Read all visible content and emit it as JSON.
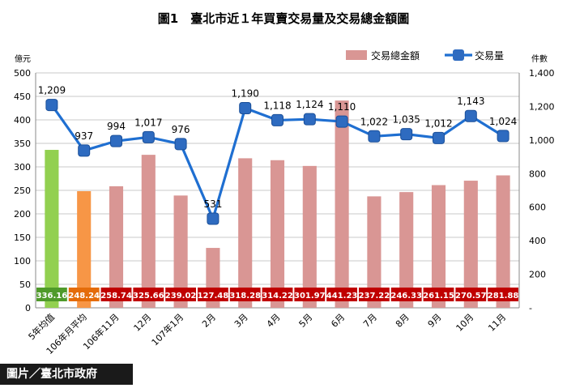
{
  "chart_data": {
    "type": "bar",
    "title": "圖1　臺北市近１年買賣交易量及交易總金額圖",
    "categories": [
      "5年均值",
      "106年月平均",
      "106年11月",
      "12月",
      "107年1月",
      "2月",
      "3月",
      "4月",
      "5月",
      "6月",
      "7月",
      "8月",
      "9月",
      "10月",
      "11月"
    ],
    "y_left_unit": "億元",
    "y_right_unit": "件數",
    "ylim_left": [
      0,
      500
    ],
    "ylim_right": [
      0,
      1400
    ],
    "y_left_ticks": [
      "0",
      "50",
      "100",
      "150",
      "200",
      "250",
      "300",
      "350",
      "400",
      "450",
      "500"
    ],
    "y_right_ticks": [
      "-",
      "200",
      "400",
      "600",
      "800",
      "1,000",
      "1,200",
      "1,400"
    ],
    "grid": true,
    "legend_position": "top-right",
    "series": [
      {
        "name": "交易總金額",
        "kind": "bar",
        "axis": "left",
        "color": "#d99694",
        "highlight_colors": [
          "#92d050",
          "#f79646"
        ],
        "label_bg": "#c00000",
        "label_bg_highlight": [
          "#4f9a2a",
          "#e46c0a"
        ],
        "values": [
          336.16,
          248.24,
          258.74,
          325.66,
          239.02,
          127.48,
          318.28,
          314.22,
          301.97,
          441.23,
          237.22,
          246.33,
          261.15,
          270.57,
          281.88
        ],
        "value_labels": [
          "336.16",
          "248.24",
          "258.74",
          "325.66",
          "239.02",
          "127.48",
          "318.28",
          "314.22",
          "301.97",
          "441.23",
          "237.22",
          "246.33",
          "261.15",
          "270.57",
          "281.88"
        ]
      },
      {
        "name": "交易量",
        "kind": "line",
        "axis": "right",
        "color": "#1f6fd1",
        "marker_color": "#2e6bc0",
        "values": [
          1209,
          937,
          994,
          1017,
          976,
          531,
          1190,
          1118,
          1124,
          1110,
          1022,
          1035,
          1012,
          1143,
          1024
        ],
        "value_labels": [
          "1,209",
          "937",
          "994",
          "1,017",
          "976",
          "531",
          "1,190",
          "1,118",
          "1,124",
          "1,110",
          "1,022",
          "1,035",
          "1,012",
          "1,143",
          "1,024"
        ]
      }
    ]
  },
  "credit": "圖片／臺北市政府"
}
